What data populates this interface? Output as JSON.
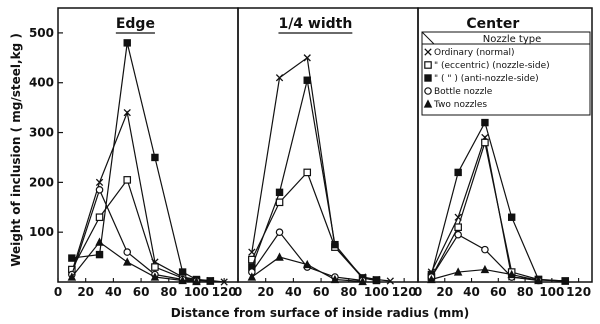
{
  "chart_data": {
    "type": "line",
    "ylabel": "Weight of inclusion ( mg/steel,kg )",
    "xlabel": "Distance from surface of inside radius (mm)",
    "ylim": [
      0,
      550
    ],
    "xlim": [
      0,
      130
    ],
    "y_ticks": [
      "100",
      "200",
      "300",
      "400",
      "500"
    ],
    "x_ticks": [
      "0",
      "20",
      "40",
      "60",
      "80",
      "100",
      "120"
    ],
    "legend": {
      "title": "Nozzle type",
      "entries": [
        {
          "marker": "x",
          "label": "Ordinary (normal)"
        },
        {
          "marker": "square-open",
          "label": "\" (eccentric) (nozzle-side)"
        },
        {
          "marker": "square-filled",
          "label": "\" (   \"   ) (anti-nozzle-side)"
        },
        {
          "marker": "circle",
          "label": "Bottle nozzle"
        },
        {
          "marker": "triangle",
          "label": "Two nozzles"
        }
      ]
    },
    "panels": [
      {
        "title": "Edge",
        "series": [
          {
            "marker": "x",
            "points": [
              [
                10,
                20
              ],
              [
                30,
                200
              ],
              [
                50,
                340
              ],
              [
                70,
                40
              ],
              [
                90,
                10
              ],
              [
                100,
                5
              ],
              [
                110,
                3
              ],
              [
                120,
                0
              ]
            ]
          },
          {
            "marker": "square-open",
            "points": [
              [
                10,
                25
              ],
              [
                30,
                130
              ],
              [
                50,
                205
              ],
              [
                70,
                30
              ],
              [
                90,
                8
              ],
              [
                100,
                3
              ],
              [
                110,
                2
              ]
            ]
          },
          {
            "marker": "square-filled",
            "points": [
              [
                10,
                48
              ],
              [
                30,
                55
              ],
              [
                50,
                480
              ],
              [
                70,
                250
              ],
              [
                90,
                20
              ],
              [
                100,
                5
              ],
              [
                110,
                2
              ]
            ]
          },
          {
            "marker": "circle",
            "points": [
              [
                10,
                15
              ],
              [
                30,
                185
              ],
              [
                50,
                60
              ],
              [
                70,
                15
              ],
              [
                90,
                5
              ],
              [
                100,
                2
              ]
            ]
          },
          {
            "marker": "triangle",
            "points": [
              [
                10,
                10
              ],
              [
                30,
                80
              ],
              [
                50,
                40
              ],
              [
                70,
                10
              ],
              [
                90,
                3
              ],
              [
                100,
                1
              ]
            ]
          }
        ]
      },
      {
        "title": "1/4 width",
        "series": [
          {
            "marker": "x",
            "points": [
              [
                10,
                60
              ],
              [
                30,
                410
              ],
              [
                50,
                450
              ],
              [
                70,
                70
              ],
              [
                90,
                10
              ],
              [
                100,
                5
              ],
              [
                110,
                2
              ]
            ]
          },
          {
            "marker": "square-open",
            "points": [
              [
                10,
                45
              ],
              [
                30,
                160
              ],
              [
                50,
                220
              ],
              [
                70,
                70
              ],
              [
                90,
                8
              ],
              [
                100,
                4
              ]
            ]
          },
          {
            "marker": "square-filled",
            "points": [
              [
                10,
                30
              ],
              [
                30,
                180
              ],
              [
                50,
                405
              ],
              [
                70,
                75
              ],
              [
                90,
                8
              ],
              [
                100,
                3
              ]
            ]
          },
          {
            "marker": "circle",
            "points": [
              [
                10,
                20
              ],
              [
                30,
                100
              ],
              [
                50,
                30
              ],
              [
                70,
                10
              ],
              [
                90,
                3
              ]
            ]
          },
          {
            "marker": "triangle",
            "points": [
              [
                10,
                10
              ],
              [
                30,
                50
              ],
              [
                50,
                35
              ],
              [
                70,
                5
              ],
              [
                90,
                1
              ]
            ]
          }
        ]
      },
      {
        "title": "Center",
        "series": [
          {
            "marker": "x",
            "points": [
              [
                10,
                20
              ],
              [
                30,
                130
              ],
              [
                50,
                290
              ],
              [
                70,
                10
              ],
              [
                90,
                4
              ],
              [
                110,
                2
              ]
            ]
          },
          {
            "marker": "square-open",
            "points": [
              [
                10,
                10
              ],
              [
                30,
                110
              ],
              [
                50,
                280
              ],
              [
                70,
                20
              ],
              [
                90,
                5
              ],
              [
                110,
                2
              ]
            ]
          },
          {
            "marker": "square-filled",
            "points": [
              [
                10,
                15
              ],
              [
                30,
                220
              ],
              [
                50,
                320
              ],
              [
                70,
                130
              ],
              [
                90,
                5
              ],
              [
                110,
                2
              ]
            ]
          },
          {
            "marker": "circle",
            "points": [
              [
                10,
                10
              ],
              [
                30,
                95
              ],
              [
                50,
                65
              ],
              [
                70,
                10
              ],
              [
                90,
                3
              ]
            ]
          },
          {
            "marker": "triangle",
            "points": [
              [
                10,
                5
              ],
              [
                30,
                20
              ],
              [
                50,
                25
              ],
              [
                70,
                15
              ],
              [
                90,
                3
              ]
            ]
          }
        ]
      }
    ]
  }
}
